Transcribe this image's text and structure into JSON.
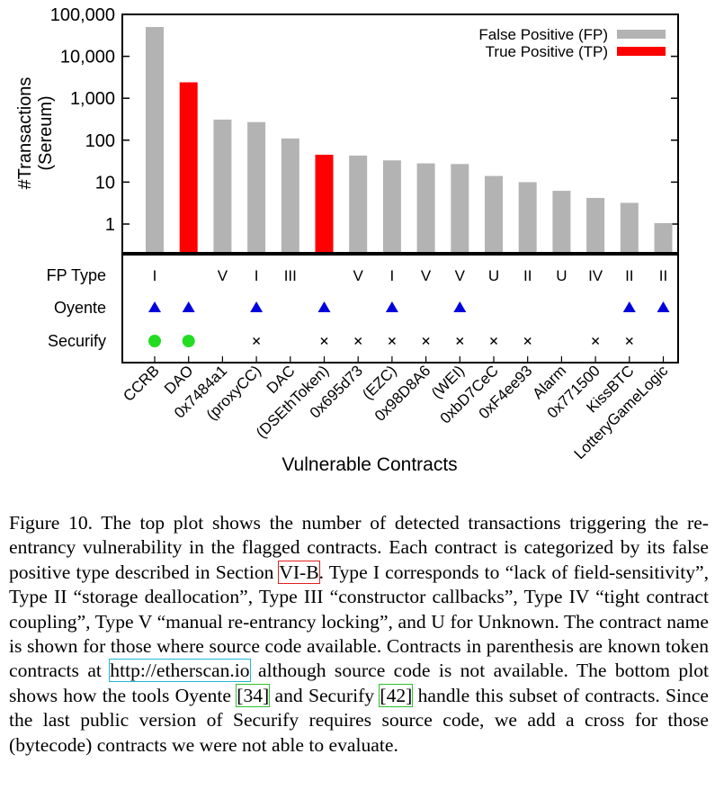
{
  "chart_data": {
    "type": "bar",
    "yscale": "log",
    "ylabel_line1": "#Transactions",
    "ylabel_line2": "(Sereum)",
    "xlabel": "Vulnerable Contracts",
    "ylim": [
      0.3,
      100000
    ],
    "yticks": [
      {
        "value": 1,
        "label": "1"
      },
      {
        "value": 10,
        "label": "10"
      },
      {
        "value": 100,
        "label": "100"
      },
      {
        "value": 1000,
        "label": "1,000"
      },
      {
        "value": 10000,
        "label": "10,000"
      },
      {
        "value": 100000,
        "label": "100,000"
      }
    ],
    "categories": [
      "CCRB",
      "DAO",
      "0x7484a1",
      "(proxyCC)",
      "DAC",
      "(DSEthToken)",
      "0x695d73",
      "(EZC)",
      "0x98D8A6",
      "(WEI)",
      "0xbD7CeC",
      "0xF4ee93",
      "Alarm",
      "0x771500",
      "KissBTC",
      "LotteryGameLogic"
    ],
    "series": [
      {
        "name": "False Positive (FP)",
        "color": "#b3b3b3",
        "values": [
          50000,
          null,
          310,
          270,
          110,
          null,
          43,
          33,
          28,
          27,
          14,
          10,
          6.2,
          4.2,
          3.2,
          1.05
        ]
      },
      {
        "name": "True Positive (TP)",
        "color": "#ff0000",
        "values": [
          null,
          2400,
          null,
          null,
          null,
          45,
          null,
          null,
          null,
          null,
          null,
          null,
          null,
          null,
          null,
          null
        ]
      }
    ],
    "legend_position": "top-right",
    "table": {
      "rows": [
        {
          "label": "FP Type",
          "values": [
            "I",
            "",
            "V",
            "I",
            "III",
            "",
            "V",
            "I",
            "V",
            "V",
            "U",
            "II",
            "U",
            "IV",
            "II",
            "II"
          ]
        },
        {
          "label": "Oyente",
          "marker": "triangle",
          "color": "#0000dd",
          "values": [
            true,
            true,
            false,
            true,
            false,
            true,
            false,
            true,
            false,
            true,
            false,
            false,
            false,
            false,
            true,
            true
          ]
        },
        {
          "label": "Securify",
          "values": [
            "circle",
            "circle",
            "",
            "cross",
            "",
            "cross",
            "cross",
            "cross",
            "cross",
            "cross",
            "cross",
            "cross",
            "",
            "cross",
            "cross",
            ""
          ],
          "circle_color": "#22dd22"
        }
      ]
    }
  },
  "caption": {
    "p1": "Figure 10.   The top plot shows the number of detected transactions triggering the re-entrancy vulnerability in the flagged contracts. Each contract is categorized by its false positive type described in Section ",
    "ref1": "VI-B",
    "p2": ". Type I corresponds to “lack of field-sensitivity”, Type II “storage deallocation”, Type III “constructor callbacks”, Type IV “tight contract coupling”, Type V “manual re-entrancy locking”, and U for Unknown. The contract name is shown for those where source code available. Contracts in parenthesis are known token contracts at ",
    "link": "http://etherscan.io",
    "p3": " although source code is not available. The bottom plot shows how the tools Oyente ",
    "ref2": "[34]",
    "p4": " and Securify ",
    "ref3": "[42]",
    "p5": " handle this subset of contracts. Since the last public version of Securify requires source code, we add a cross for those (bytecode) contracts we were not able to evaluate."
  }
}
